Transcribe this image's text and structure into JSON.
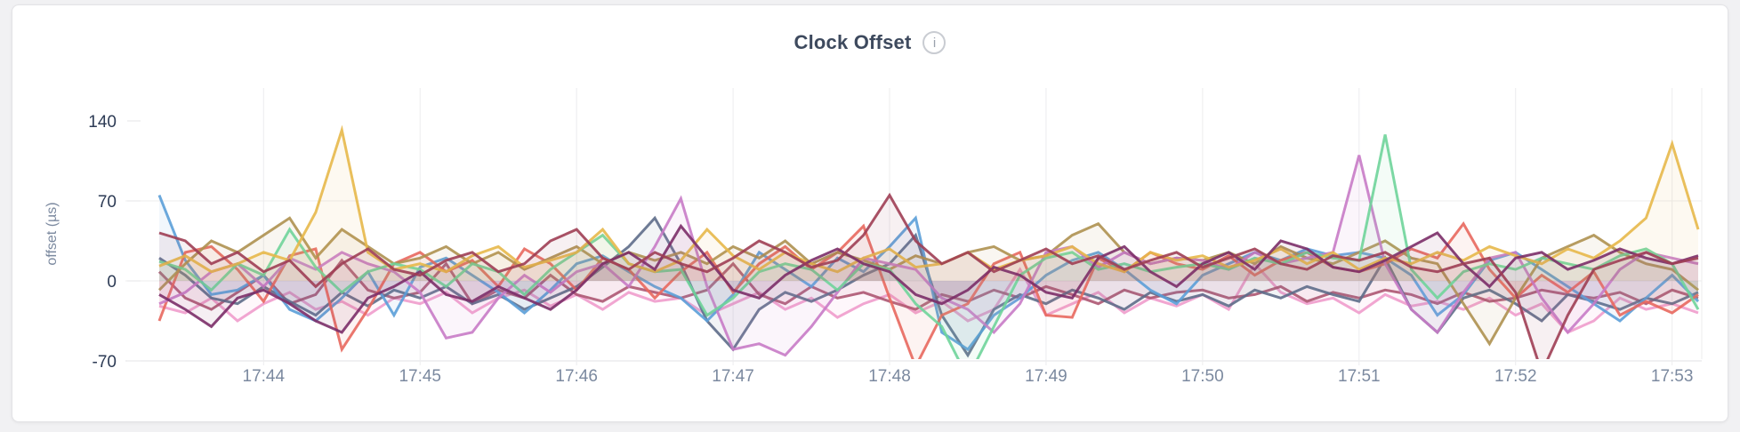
{
  "card": {
    "title": "Clock Offset",
    "info_glyph": "i"
  },
  "chart_data": {
    "type": "line",
    "title": "Clock Offset",
    "xlabel": "",
    "ylabel": "offset (µs)",
    "x_tick_labels": [
      "17:44",
      "17:45",
      "17:46",
      "17:47",
      "17:48",
      "17:49",
      "17:50",
      "17:51",
      "17:52",
      "17:53"
    ],
    "y_tick_values": [
      140,
      70,
      0,
      -70
    ],
    "y_gridline_values": [
      70,
      0,
      -70
    ],
    "ylim": [
      -70,
      168
    ],
    "interval_per_point": "10s",
    "first_tick_point_index": 4,
    "points_per_tick": 6,
    "grid": true,
    "legend": "none",
    "area_fill_opacity": 0.08,
    "line_opacity": 0.9,
    "series": [
      {
        "name": "pink",
        "color": "#F09CCC",
        "values": [
          -22,
          -28,
          -15,
          -35,
          -20,
          -10,
          -25,
          -18,
          -30,
          -15,
          -20,
          -10,
          -28,
          -15,
          -8,
          -22,
          -12,
          -25,
          -10,
          -18,
          -15,
          -30,
          -20,
          -10,
          -25,
          -15,
          -32,
          -20,
          -12,
          -28,
          -18,
          -35,
          -25,
          10,
          -30,
          -20,
          -10,
          -28,
          -15,
          -22,
          -12,
          -25,
          15,
          -10,
          -20,
          -15,
          -28,
          -12,
          -22,
          -18,
          -25,
          -15,
          -30,
          -20,
          -45,
          -35,
          -15,
          -25,
          -20,
          -28
        ]
      },
      {
        "name": "wine",
        "color": "#AD5672",
        "values": [
          8,
          -15,
          -25,
          -10,
          5,
          -20,
          -12,
          18,
          -8,
          -15,
          -10,
          15,
          -20,
          -8,
          -15,
          5,
          -12,
          -18,
          -5,
          -10,
          -15,
          -8,
          15,
          -12,
          -20,
          -5,
          -15,
          -10,
          -18,
          -25,
          -12,
          -18,
          -8,
          -15,
          -5,
          -12,
          -20,
          -8,
          -15,
          -10,
          -8,
          -15,
          -12,
          -5,
          -18,
          -10,
          -15,
          -8,
          -12,
          -20,
          -10,
          -18,
          -15,
          -8,
          -12,
          -15,
          -10,
          -20,
          -8,
          -15
        ]
      },
      {
        "name": "slate-blue",
        "color": "#5E6D89",
        "values": [
          20,
          5,
          -15,
          -20,
          -5,
          -18,
          -30,
          -10,
          -22,
          -8,
          -15,
          -5,
          -20,
          -12,
          -25,
          -15,
          -5,
          12,
          30,
          55,
          15,
          -35,
          -60,
          -25,
          -10,
          -18,
          -8,
          5,
          15,
          40,
          -30,
          -65,
          -25,
          -12,
          -20,
          -8,
          -15,
          -25,
          -10,
          -18,
          -12,
          -22,
          -8,
          -15,
          -5,
          -12,
          -18,
          20,
          -25,
          -45,
          -15,
          -8,
          -20,
          -35,
          -12,
          -18,
          -25,
          -15,
          -20,
          -10
        ]
      },
      {
        "name": "blue",
        "color": "#5B9FD8",
        "values": [
          75,
          18,
          -12,
          -8,
          5,
          -25,
          -35,
          -15,
          8,
          -30,
          12,
          20,
          5,
          -10,
          -28,
          -8,
          15,
          22,
          8,
          -5,
          -15,
          -35,
          -12,
          25,
          10,
          -5,
          20,
          8,
          30,
          55,
          -45,
          -60,
          -30,
          -15,
          5,
          18,
          25,
          10,
          -8,
          -20,
          5,
          15,
          25,
          18,
          28,
          22,
          25,
          20,
          5,
          -30,
          -12,
          18,
          25,
          10,
          -5,
          -20,
          -35,
          -15,
          5,
          -18
        ]
      },
      {
        "name": "salmon",
        "color": "#E8685E",
        "values": [
          -35,
          25,
          30,
          10,
          -18,
          22,
          28,
          -60,
          -25,
          15,
          25,
          8,
          18,
          -5,
          28,
          15,
          -8,
          20,
          10,
          -15,
          8,
          25,
          -10,
          15,
          30,
          10,
          25,
          48,
          -15,
          -75,
          -30,
          -20,
          15,
          25,
          -30,
          -32,
          20,
          8,
          25,
          15,
          10,
          22,
          5,
          18,
          25,
          12,
          8,
          15,
          28,
          20,
          50,
          10,
          -15,
          5,
          -10,
          8,
          -30,
          -18,
          -28,
          -12
        ]
      },
      {
        "name": "khaki",
        "color": "#AE9150",
        "values": [
          -8,
          15,
          35,
          25,
          40,
          55,
          20,
          45,
          30,
          15,
          20,
          30,
          15,
          25,
          10,
          20,
          30,
          15,
          25,
          18,
          25,
          15,
          30,
          20,
          35,
          15,
          25,
          18,
          10,
          22,
          15,
          25,
          30,
          18,
          22,
          40,
          50,
          25,
          15,
          20,
          18,
          25,
          15,
          30,
          20,
          15,
          25,
          35,
          20,
          15,
          -20,
          -55,
          -15,
          20,
          30,
          40,
          25,
          15,
          10,
          -8
        ]
      },
      {
        "name": "orchid",
        "color": "#C87BC6",
        "values": [
          -20,
          -10,
          8,
          15,
          -5,
          20,
          10,
          25,
          15,
          8,
          -10,
          -50,
          -45,
          -15,
          5,
          -10,
          8,
          15,
          -5,
          30,
          72,
          -5,
          -60,
          -55,
          -65,
          -40,
          -10,
          20,
          15,
          10,
          -15,
          -25,
          -45,
          -20,
          25,
          30,
          12,
          25,
          15,
          20,
          18,
          10,
          25,
          15,
          20,
          25,
          110,
          15,
          -25,
          -45,
          -10,
          20,
          25,
          -15,
          -45,
          -20,
          10,
          25,
          20,
          15
        ]
      },
      {
        "name": "green",
        "color": "#6FD49A",
        "values": [
          17,
          10,
          -8,
          15,
          5,
          45,
          12,
          -10,
          8,
          15,
          10,
          -5,
          15,
          8,
          -12,
          10,
          25,
          40,
          15,
          8,
          10,
          -30,
          -15,
          8,
          15,
          10,
          -8,
          15,
          10,
          -20,
          -40,
          -85,
          -40,
          5,
          20,
          25,
          10,
          15,
          8,
          12,
          15,
          10,
          20,
          15,
          25,
          20,
          18,
          128,
          10,
          -15,
          8,
          15,
          10,
          20,
          15,
          10,
          22,
          28,
          15,
          -25
        ]
      },
      {
        "name": "amber",
        "color": "#E7B84A",
        "values": [
          13,
          22,
          8,
          15,
          25,
          18,
          60,
          132,
          25,
          10,
          15,
          8,
          22,
          30,
          12,
          18,
          25,
          45,
          15,
          8,
          18,
          45,
          22,
          10,
          25,
          15,
          8,
          20,
          28,
          12,
          15,
          25,
          10,
          18,
          22,
          30,
          15,
          8,
          25,
          18,
          22,
          12,
          18,
          28,
          15,
          25,
          10,
          20,
          15,
          25,
          18,
          30,
          22,
          15,
          28,
          20,
          35,
          55,
          120,
          45
        ]
      },
      {
        "name": "plum",
        "color": "#7B2D68",
        "values": [
          -12,
          -25,
          -40,
          -15,
          -8,
          -20,
          -35,
          -45,
          -15,
          -5,
          8,
          -12,
          -18,
          -5,
          -15,
          -25,
          -8,
          15,
          25,
          10,
          48,
          20,
          -8,
          -15,
          5,
          18,
          28,
          15,
          8,
          -12,
          -20,
          -8,
          12,
          5,
          -10,
          -15,
          20,
          30,
          8,
          -5,
          15,
          25,
          10,
          35,
          28,
          12,
          8,
          18,
          30,
          42,
          15,
          -5,
          20,
          25,
          10,
          18,
          28,
          20,
          15,
          22
        ]
      },
      {
        "name": "maroon",
        "color": "#9E3E54",
        "values": [
          42,
          35,
          15,
          25,
          8,
          18,
          -5,
          15,
          28,
          10,
          5,
          18,
          25,
          8,
          15,
          35,
          45,
          20,
          10,
          25,
          15,
          8,
          20,
          35,
          25,
          12,
          18,
          40,
          75,
          35,
          15,
          25,
          8,
          18,
          28,
          15,
          22,
          10,
          18,
          25,
          12,
          20,
          28,
          15,
          10,
          22,
          18,
          25,
          12,
          8,
          15,
          20,
          -10,
          -80,
          -30,
          10,
          18,
          25,
          15,
          20
        ]
      }
    ]
  }
}
